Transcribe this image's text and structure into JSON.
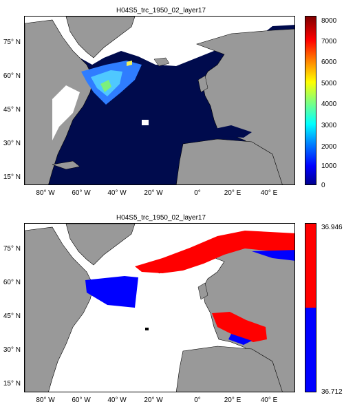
{
  "panels": [
    {
      "title": "H04S5_trc_1950_02_layer17",
      "y_ticks": [
        "75° N",
        "60° N",
        "45° N",
        "30° N",
        "15° N"
      ],
      "x_ticks": [
        "80° W",
        "60° W",
        "40° W",
        "20° W",
        "0°",
        "20° E",
        "40° E"
      ],
      "colorbar_ticks": [
        "8000",
        "7000",
        "6000",
        "5000",
        "4000",
        "3000",
        "2000",
        "1000",
        "0"
      ],
      "colorbar_range": [
        0,
        8000
      ],
      "colormap": "jet",
      "colors": {
        "land": "#999999",
        "ocean_background": "#000b4d",
        "missing": "#ffffff"
      }
    },
    {
      "title": "H04S5_trc_1950_02_layer17",
      "y_ticks": [
        "75° N",
        "60° N",
        "45° N",
        "30° N",
        "15° N"
      ],
      "x_ticks": [
        "80° W",
        "60° W",
        "40° W",
        "20° W",
        "0°",
        "20° E",
        "40° E"
      ],
      "colorbar_ticks": [
        "36.946",
        "36.712"
      ],
      "colorbar_range": [
        36.712,
        36.946
      ],
      "colormap": "two-class",
      "colors": {
        "land": "#999999",
        "low": "#0000ff",
        "high": "#ff0000",
        "background": "#ffffff"
      }
    }
  ]
}
